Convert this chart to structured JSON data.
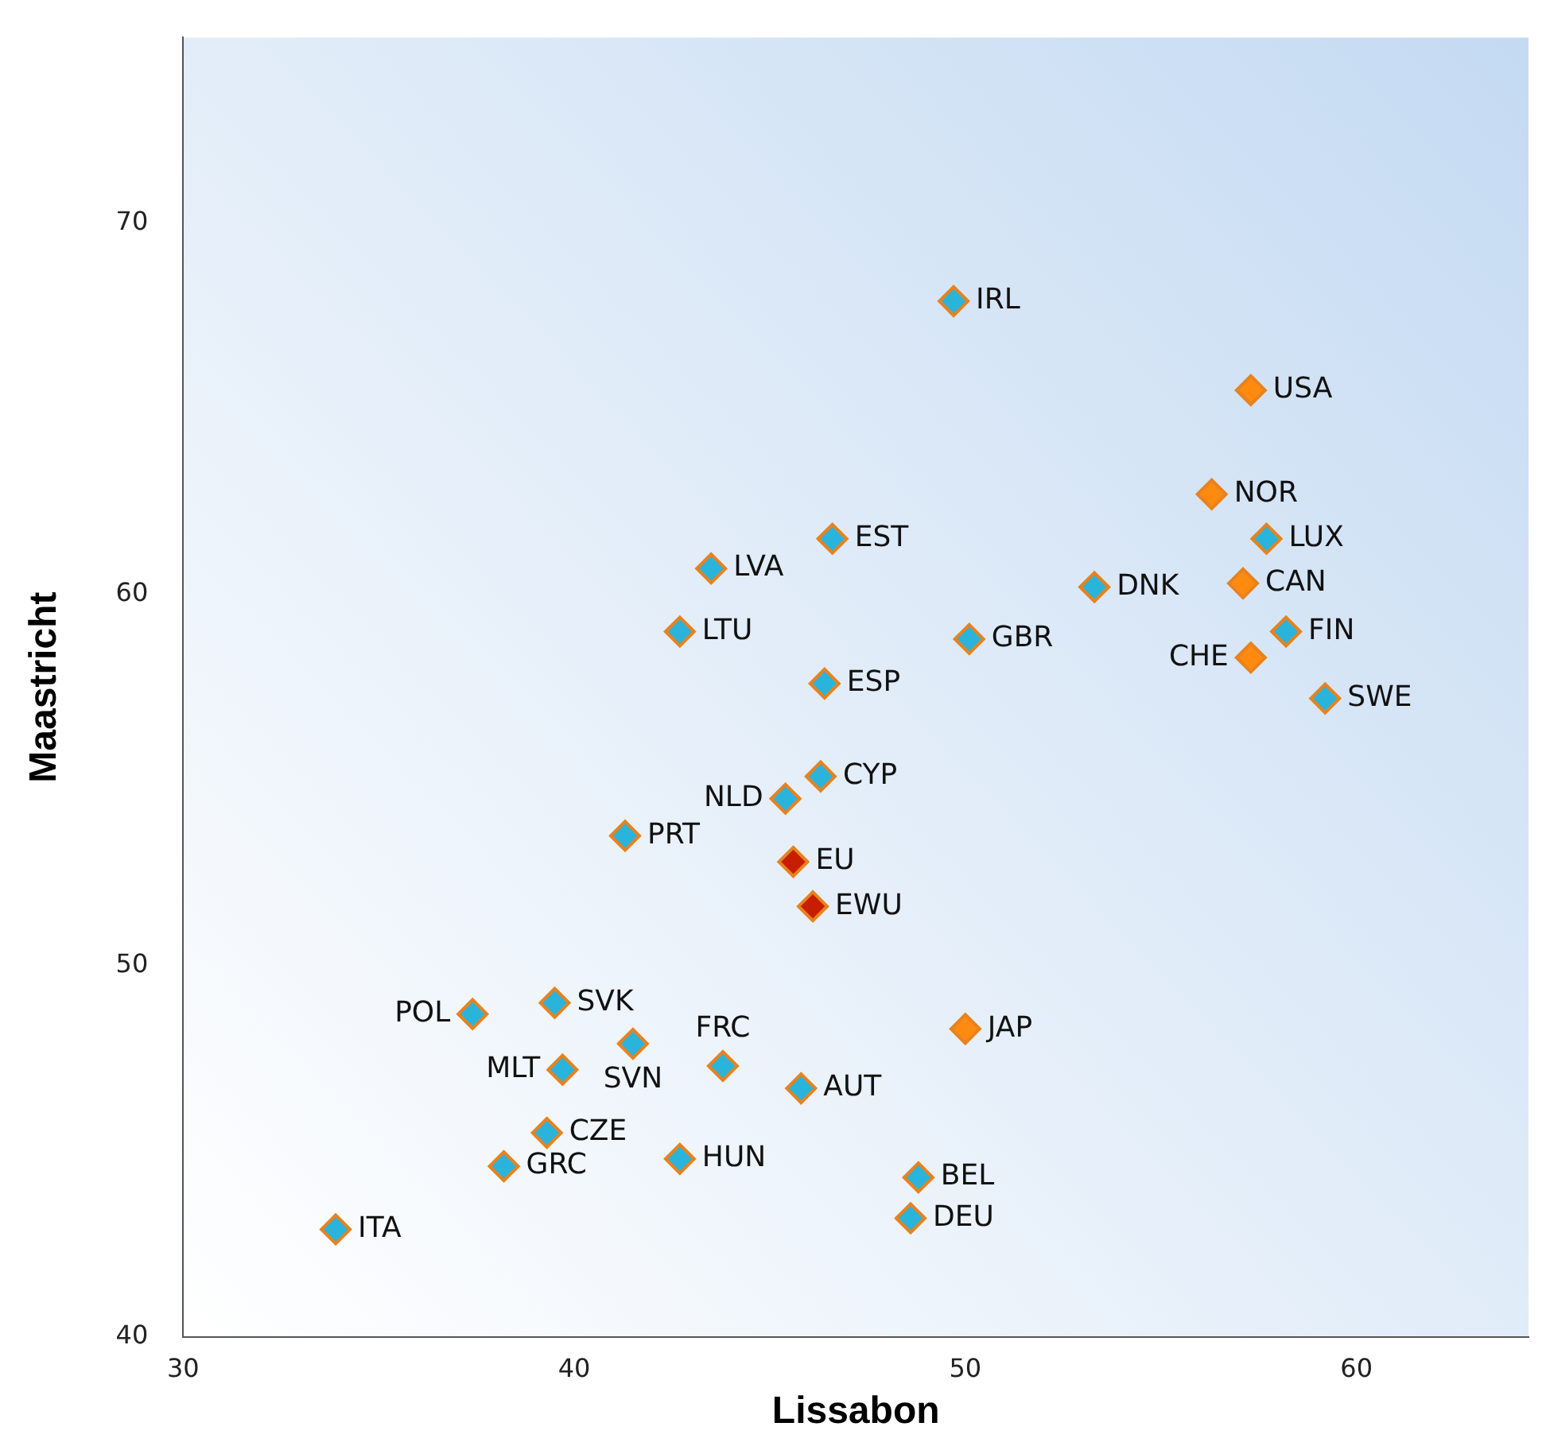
{
  "chart_data": {
    "type": "scatter",
    "xlabel": "Lissabon",
    "ylabel": "Maastricht",
    "xlim": [
      30,
      64.4
    ],
    "ylim": [
      40,
      75
    ],
    "xticks": [
      30,
      40,
      50,
      60
    ],
    "yticks": [
      40,
      50,
      60,
      70
    ],
    "grid": false,
    "legend": false,
    "marker": "diamond",
    "series": [
      {
        "color": "#2ab4dc",
        "x": [
          49.7,
          58.2,
          59.2,
          53.3,
          50.1,
          46.6,
          43.5,
          42.7,
          46.4,
          46.3,
          45.4,
          41.3,
          37.4,
          39.5,
          41.5,
          39.7,
          43.8,
          45.8,
          39.3,
          38.2,
          42.7,
          48.8,
          48.6,
          33.9,
          57.7
        ],
        "values": [
          67.9,
          59.0,
          57.2,
          60.2,
          58.8,
          61.5,
          60.7,
          59.0,
          57.6,
          55.1,
          54.5,
          53.5,
          48.7,
          49.0,
          47.9,
          47.2,
          47.3,
          46.7,
          45.5,
          44.6,
          44.8,
          44.3,
          43.2,
          42.9,
          61.5
        ]
      },
      {
        "color": "#ff8a10",
        "x": [
          57.3,
          56.3,
          57.1,
          57.3,
          50.0
        ],
        "values": [
          65.5,
          62.7,
          60.3,
          58.3,
          48.3
        ]
      },
      {
        "color": "#c81e00",
        "x": [
          45.6,
          46.1
        ],
        "values": [
          52.8,
          51.6
        ]
      }
    ],
    "annotations": [
      {
        "text": "IRL",
        "x": 49.7,
        "y": 67.9
      },
      {
        "text": "FIN",
        "x": 58.2,
        "y": 59.0
      },
      {
        "text": "SWE",
        "x": 59.2,
        "y": 57.2
      },
      {
        "text": "DNK",
        "x": 53.3,
        "y": 60.2
      },
      {
        "text": "GBR",
        "x": 50.1,
        "y": 58.8
      },
      {
        "text": "EST",
        "x": 46.6,
        "y": 61.5
      },
      {
        "text": "LVA",
        "x": 43.5,
        "y": 60.7
      },
      {
        "text": "LTU",
        "x": 42.7,
        "y": 59.0
      },
      {
        "text": "ESP",
        "x": 46.4,
        "y": 57.6
      },
      {
        "text": "CYP",
        "x": 46.3,
        "y": 55.1
      },
      {
        "text": "NLD",
        "x": 45.4,
        "y": 54.5
      },
      {
        "text": "PRT",
        "x": 41.3,
        "y": 53.5
      },
      {
        "text": "POL",
        "x": 37.4,
        "y": 48.7
      },
      {
        "text": "SVK",
        "x": 39.5,
        "y": 49.0
      },
      {
        "text": "SVN",
        "x": 41.5,
        "y": 47.9
      },
      {
        "text": "MLT",
        "x": 39.7,
        "y": 47.2
      },
      {
        "text": "FRC",
        "x": 43.8,
        "y": 47.3
      },
      {
        "text": "AUT",
        "x": 45.8,
        "y": 46.7
      },
      {
        "text": "CZE",
        "x": 39.3,
        "y": 45.5
      },
      {
        "text": "GRC",
        "x": 38.2,
        "y": 44.6
      },
      {
        "text": "HUN",
        "x": 42.7,
        "y": 44.8
      },
      {
        "text": "BEL",
        "x": 48.8,
        "y": 44.3
      },
      {
        "text": "DEU",
        "x": 48.6,
        "y": 43.2
      },
      {
        "text": "ITA",
        "x": 33.9,
        "y": 42.9
      },
      {
        "text": "LUX",
        "x": 57.7,
        "y": 61.5
      },
      {
        "text": "USA",
        "x": 57.3,
        "y": 65.5
      },
      {
        "text": "NOR",
        "x": 56.3,
        "y": 62.7
      },
      {
        "text": "CAN",
        "x": 57.1,
        "y": 60.3
      },
      {
        "text": "CHE",
        "x": 57.3,
        "y": 58.3
      },
      {
        "text": "JAP",
        "x": 50.0,
        "y": 48.3
      },
      {
        "text": "EU",
        "x": 45.6,
        "y": 52.8
      },
      {
        "text": "EWU",
        "x": 46.1,
        "y": 51.6
      }
    ]
  }
}
